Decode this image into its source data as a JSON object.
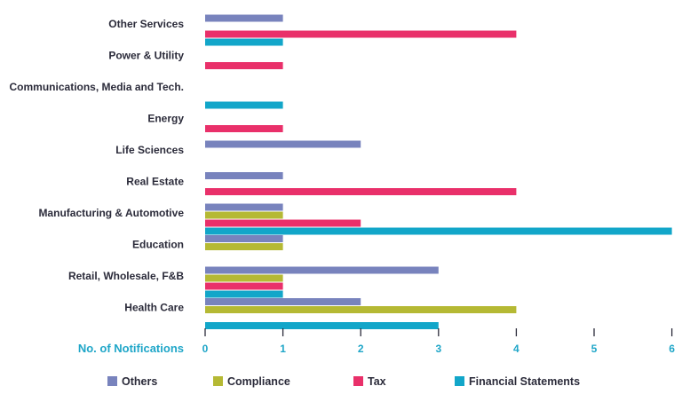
{
  "chart_data": {
    "type": "bar",
    "orientation": "horizontal",
    "xlabel": "No. of Notifications",
    "xlim": [
      0,
      6
    ],
    "xticks": [
      0,
      1,
      2,
      3,
      4,
      5,
      6
    ],
    "grid": false,
    "legend_position": "bottom",
    "categories": [
      "Other Services",
      "Power & Utility",
      "Communications, Media and Tech.",
      "Energy",
      "Life Sciences",
      "Real Estate",
      "Manufacturing & Automotive",
      "Education",
      "Retail, Wholesale, F&B",
      "Health Care"
    ],
    "series": [
      {
        "name": "Others",
        "color": "#7883bd",
        "values": [
          1,
          0,
          0,
          0,
          2,
          1,
          1,
          1,
          3,
          2
        ]
      },
      {
        "name": "Compliance",
        "color": "#b5b934",
        "values": [
          0,
          0,
          0,
          0,
          0,
          0,
          1,
          1,
          1,
          4
        ]
      },
      {
        "name": "Tax",
        "color": "#e9306a",
        "values": [
          4,
          1,
          0,
          1,
          0,
          4,
          2,
          0,
          1,
          0
        ]
      },
      {
        "name": "Financial Statements",
        "color": "#12a6c9",
        "values": [
          1,
          0,
          1,
          0,
          0,
          0,
          6,
          0,
          1,
          3
        ]
      }
    ]
  }
}
